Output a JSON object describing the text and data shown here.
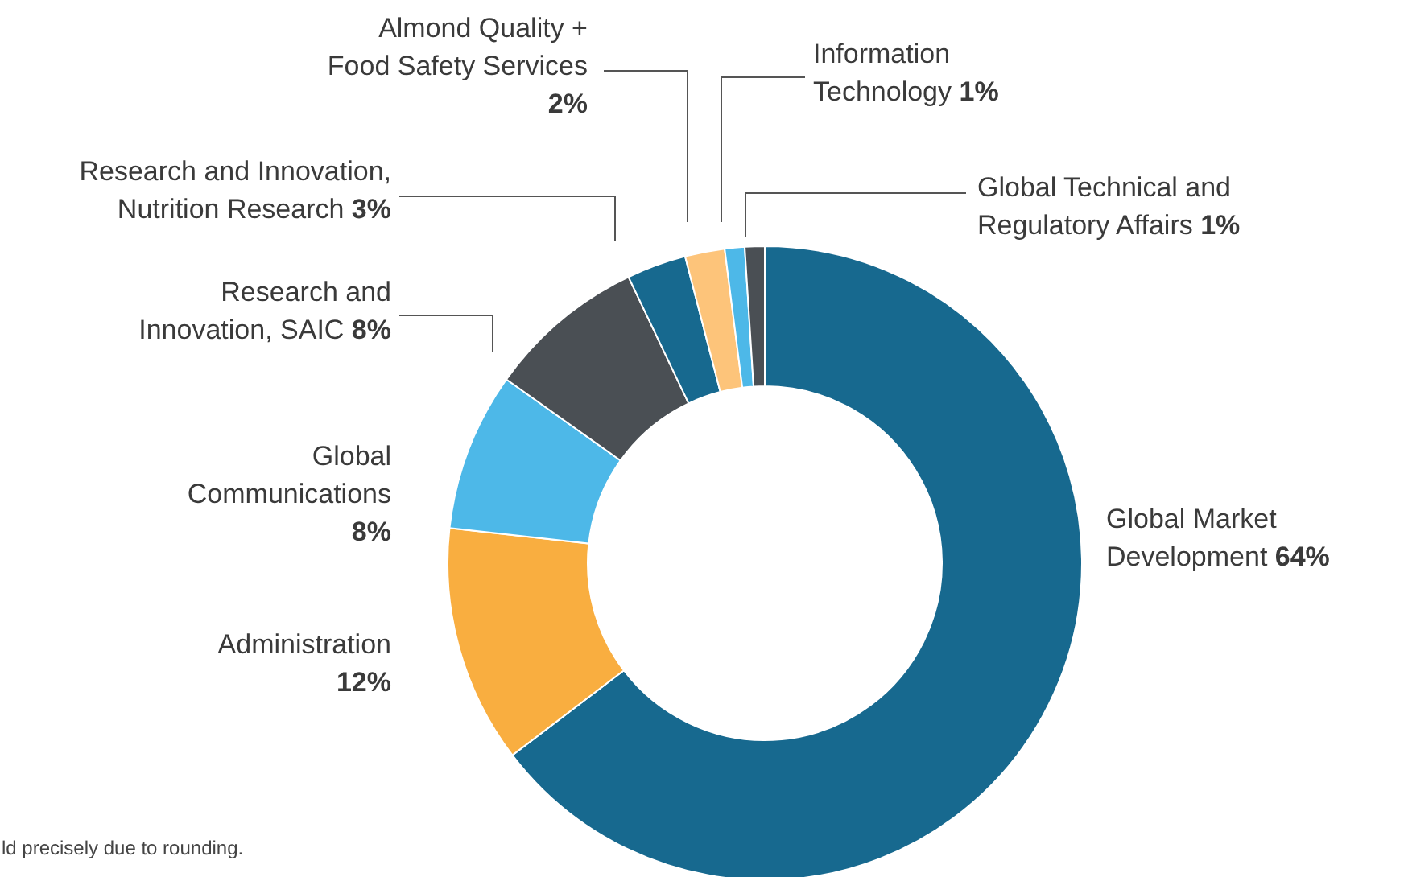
{
  "chart_data": {
    "type": "donut",
    "categories": [
      "Global Market Development",
      "Administration",
      "Global Communications",
      "Research and Innovation, SAIC",
      "Research and Innovation, Nutrition Research",
      "Almond Quality + Food Safety Services",
      "Information Technology",
      "Global Technical and Regulatory Affairs"
    ],
    "values": [
      64,
      12,
      8,
      8,
      3,
      2,
      1,
      1
    ],
    "colors": [
      "#17698f",
      "#f9ae40",
      "#4db8e8",
      "#4a4f54",
      "#17698f",
      "#fdc47a",
      "#4db8e8",
      "#4a4f54"
    ],
    "value_labels": [
      "64%",
      "12%",
      "8%",
      "8%",
      "3%",
      "2%",
      "1%",
      "1%"
    ],
    "annotations": [
      "ld precisely due to rounding."
    ]
  }
}
